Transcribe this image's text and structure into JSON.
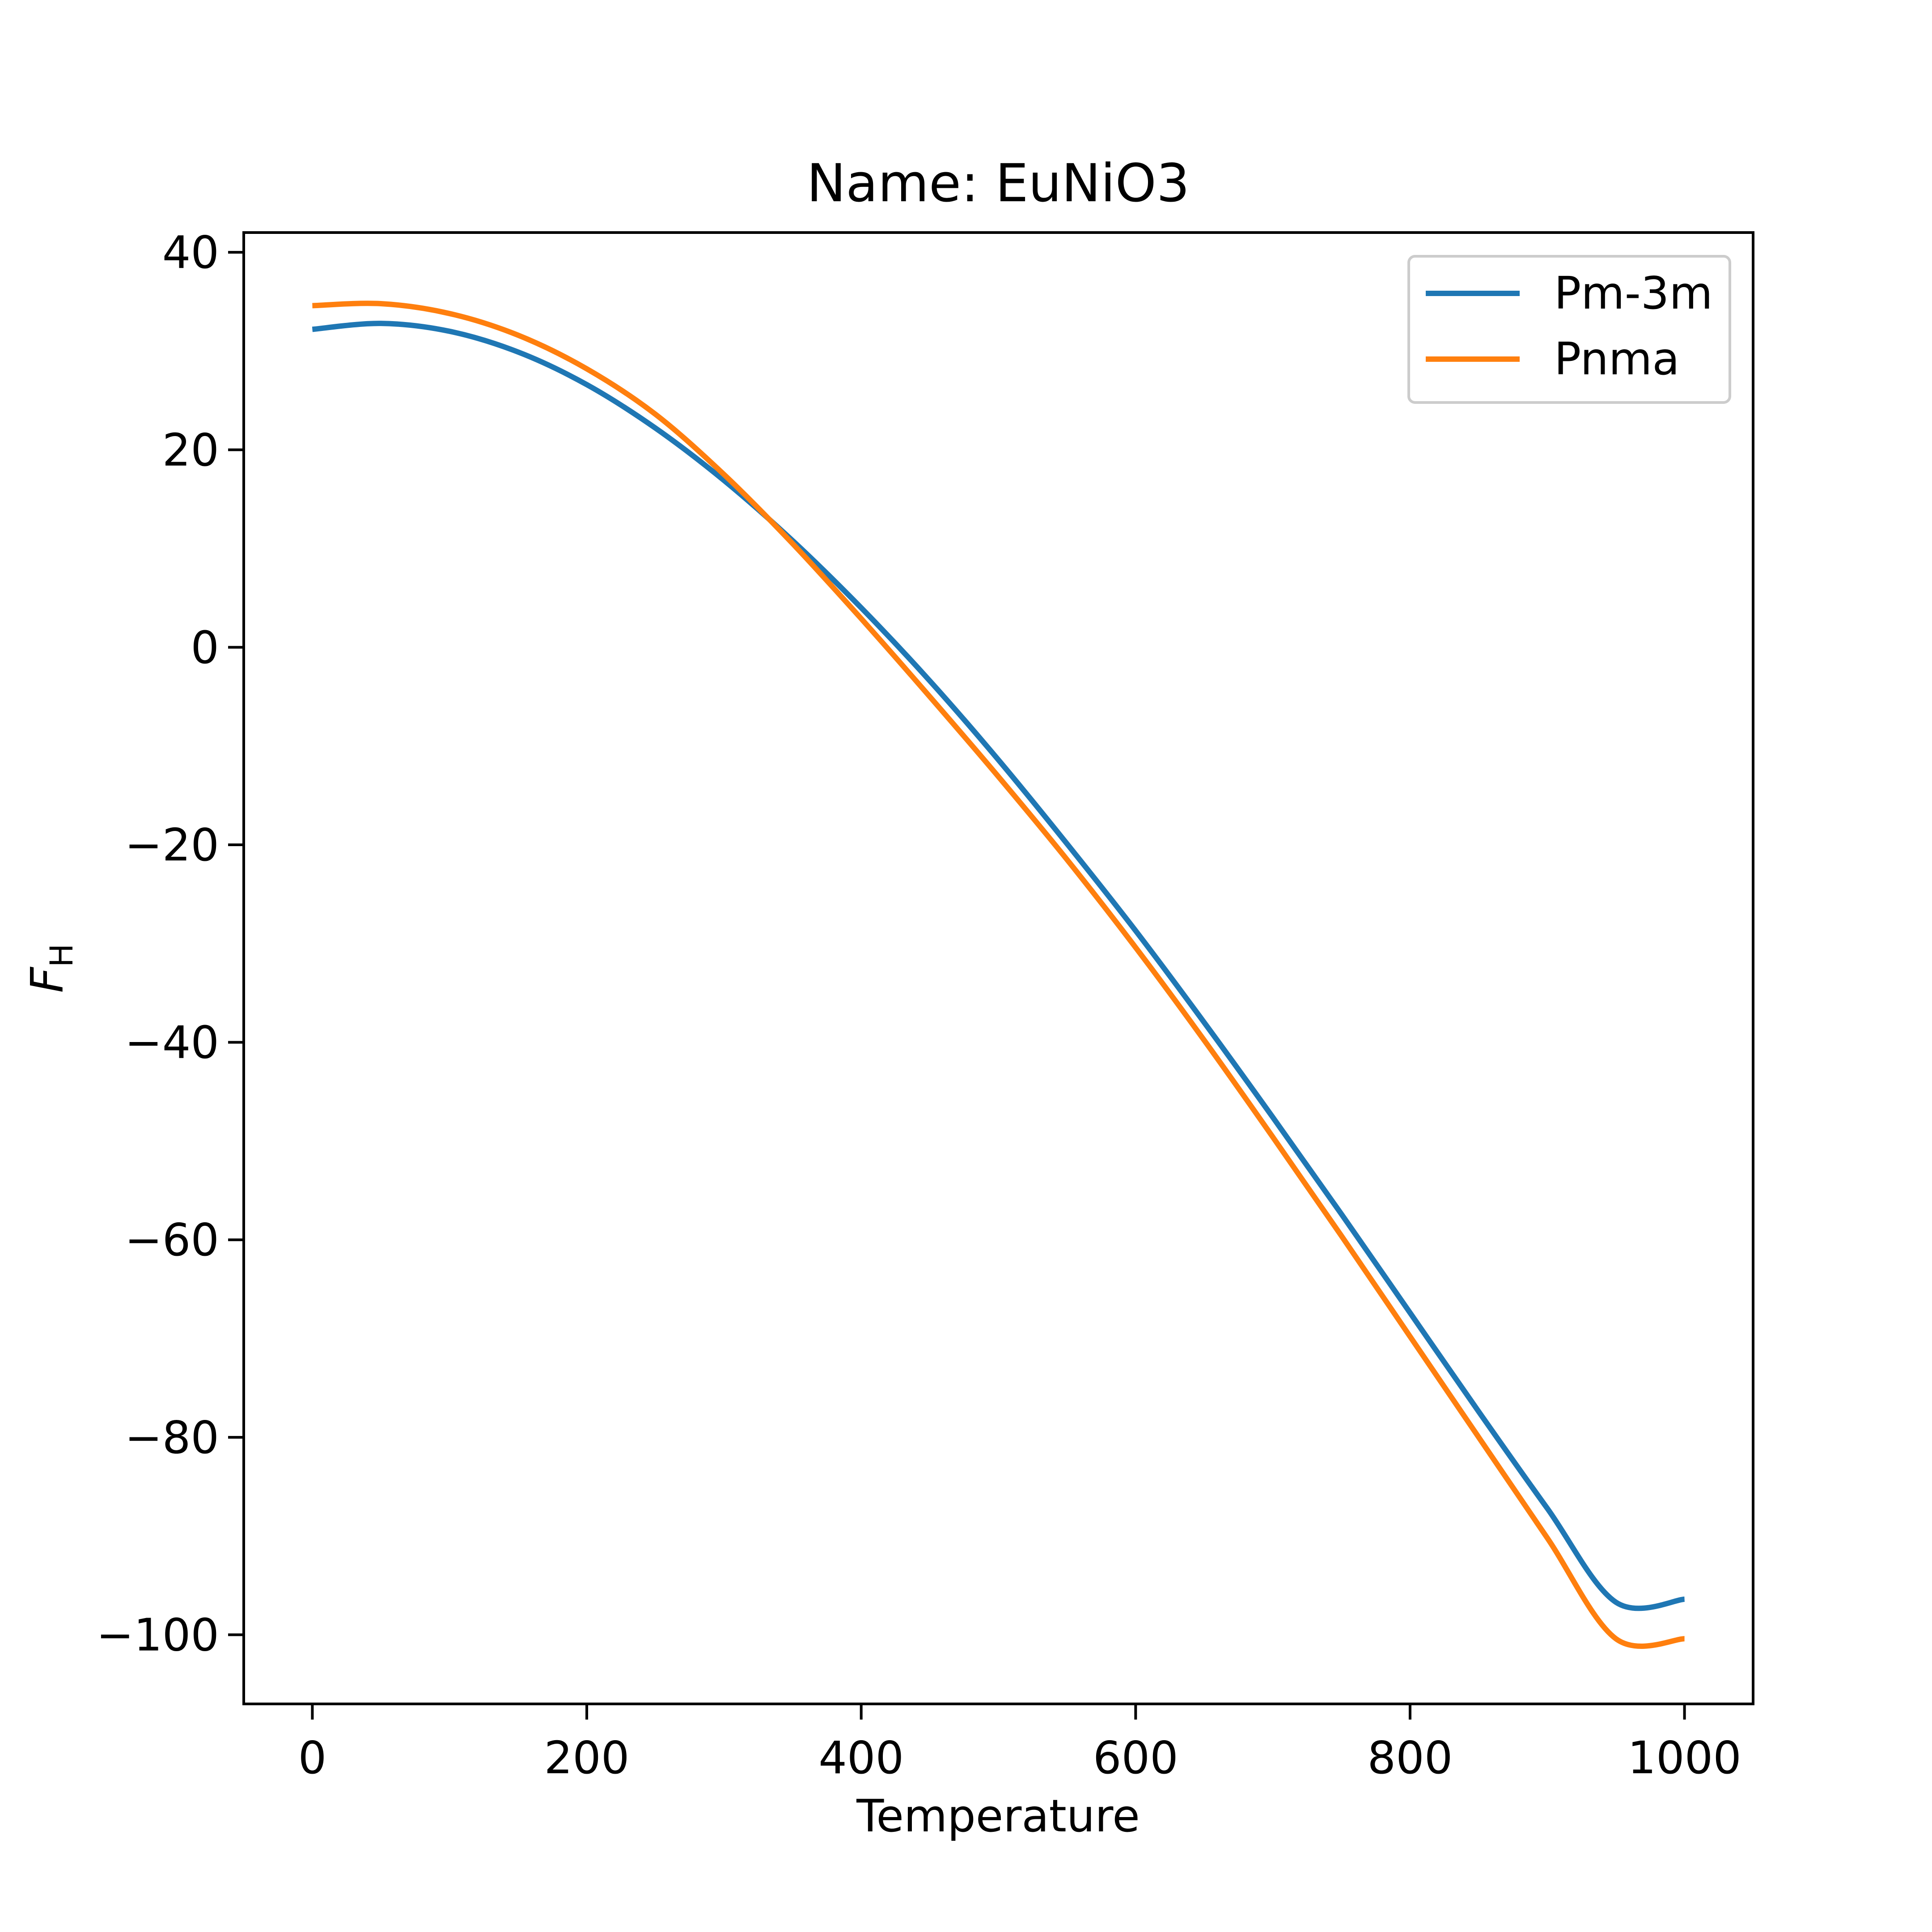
{
  "chart_data": {
    "type": "line",
    "title": "Name: EuNiO3",
    "xlabel": "Temperature",
    "ylabel_main": "F",
    "ylabel_sub": "H",
    "xlim": [
      -50,
      1050
    ],
    "ylim": [
      -107,
      42
    ],
    "xticks": [
      0,
      200,
      400,
      600,
      800,
      1000
    ],
    "yticks": [
      40,
      20,
      0,
      -20,
      -40,
      -60,
      -80,
      -100
    ],
    "xtick_labels": [
      "0",
      "200",
      "400",
      "600",
      "800",
      "1000"
    ],
    "ytick_labels": [
      "40",
      "20",
      "0",
      "−20",
      "−40",
      "−60",
      "−80",
      "−100"
    ],
    "grid": false,
    "legend_position": "upper right",
    "x": [
      0,
      50,
      100,
      150,
      200,
      250,
      300,
      350,
      400,
      450,
      500,
      550,
      600,
      650,
      700,
      750,
      800,
      850,
      900,
      950,
      1000
    ],
    "series": [
      {
        "name": "Pm-3m",
        "color": "#1f77b4",
        "values": [
          32.2,
          32.8,
          32.0,
          29.9,
          26.6,
          22.2,
          16.9,
          10.8,
          4.0,
          -3.4,
          -11.4,
          -19.9,
          -28.7,
          -38.0,
          -47.6,
          -57.4,
          -67.4,
          -77.4,
          -87.2,
          -96.7,
          -96.4
        ]
      },
      {
        "name": "Pnma",
        "color": "#ff7f0e",
        "values": [
          34.6,
          34.8,
          33.8,
          31.6,
          28.2,
          23.6,
          17.5,
          10.5,
          2.9,
          -5.0,
          -13.1,
          -21.5,
          -30.4,
          -39.8,
          -49.6,
          -59.6,
          -69.8,
          -80.0,
          -90.2,
          -100.4,
          -100.4
        ]
      }
    ]
  }
}
